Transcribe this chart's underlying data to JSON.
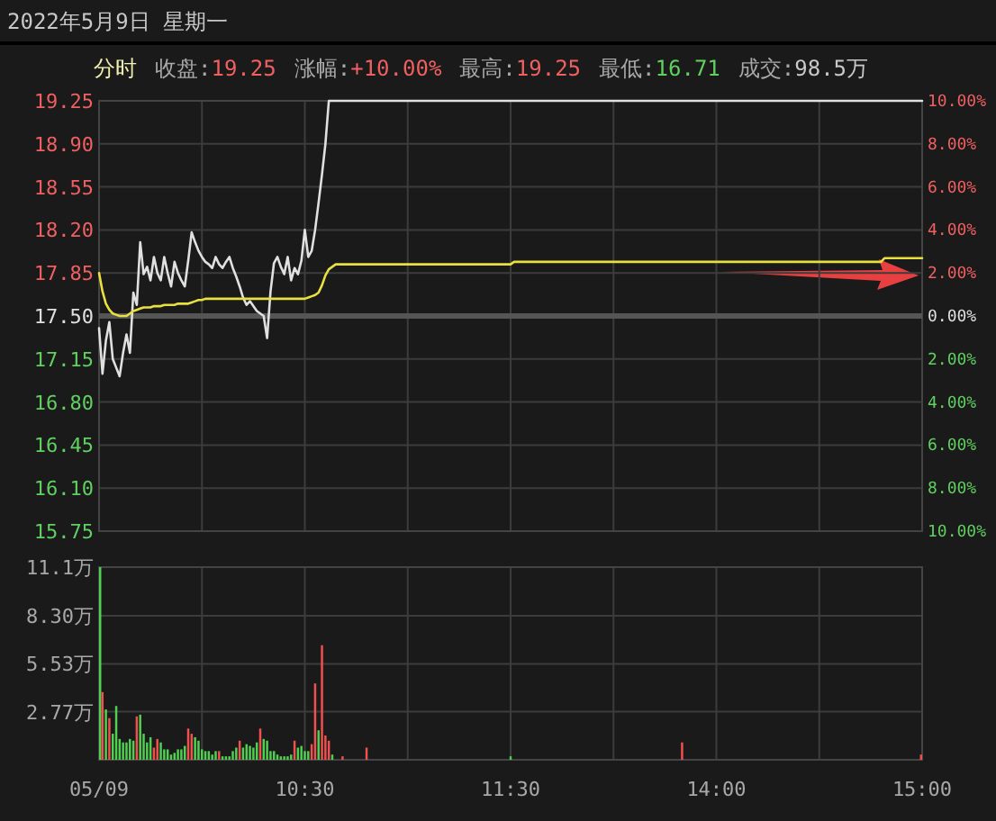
{
  "chart_data": [
    {
      "type": "line",
      "title": "2022年5月9日 星期一",
      "annotations": [
        "分时",
        "收盘:19.25",
        "涨幅:+10.00%",
        "最高:19.25",
        "最低:16.71",
        "成交:98.5万"
      ],
      "categories": [
        null,
        null,
        null,
        null,
        null,
        null,
        null,
        null,
        null,
        null,
        null,
        null,
        null,
        null,
        null,
        null,
        null,
        null,
        null,
        null,
        null,
        null,
        null,
        null,
        null,
        null,
        null,
        null,
        null,
        null,
        null,
        null,
        null,
        null,
        null,
        null,
        null,
        null,
        null,
        null,
        null,
        null,
        null,
        null,
        null,
        null,
        null,
        null,
        null,
        null,
        null,
        null,
        null,
        null,
        null,
        null,
        null,
        null,
        null,
        null,
        null,
        null,
        null,
        null,
        null,
        null,
        null,
        null,
        null,
        null,
        null,
        null,
        null,
        null,
        null,
        null,
        null,
        null,
        null,
        null,
        null,
        null,
        null,
        null,
        null,
        null,
        null,
        null,
        null,
        null,
        null,
        null,
        null,
        null,
        null,
        null,
        null,
        null,
        null,
        null,
        null,
        null,
        null,
        null,
        null,
        null,
        null,
        null,
        null,
        null,
        null,
        null,
        null,
        null,
        null,
        null,
        null,
        null,
        null,
        null,
        null,
        null,
        null,
        null,
        null,
        null,
        null,
        null,
        null,
        null,
        null,
        null,
        null,
        null,
        null,
        null,
        null,
        null,
        null,
        null,
        null,
        null,
        null,
        null,
        null,
        null,
        null,
        null,
        null,
        null,
        null,
        null,
        null,
        null,
        null,
        null,
        null,
        null,
        null,
        null,
        null,
        null,
        null,
        null,
        null,
        null,
        null,
        null,
        null,
        null,
        null,
        null,
        null,
        null,
        null,
        null,
        null,
        null,
        null,
        null,
        null,
        null,
        null,
        null,
        null,
        null,
        null,
        null,
        null,
        null,
        null,
        null,
        null,
        null,
        null,
        null,
        null,
        null,
        null,
        null,
        null,
        null,
        null,
        null,
        null,
        null,
        null,
        null,
        null,
        null,
        null,
        null,
        null,
        null,
        null,
        null,
        null,
        null,
        null,
        null,
        null,
        null,
        null,
        null,
        null,
        null,
        null,
        null,
        null,
        null,
        null,
        null,
        null,
        null,
        null,
        null,
        null,
        null,
        null,
        null,
        null
      ],
      "ylim": [
        15.75,
        19.25
      ],
      "yticks": [
        {
          "value": 19.25,
          "label": "19.25"
        },
        {
          "value": 18.9,
          "label": "18.90"
        },
        {
          "value": 18.55,
          "label": "18.55"
        },
        {
          "value": 18.2,
          "label": "18.20"
        },
        {
          "value": 17.85,
          "label": "17.85"
        },
        {
          "value": 17.5,
          "label": "17.50"
        },
        {
          "value": 17.15,
          "label": "17.15"
        },
        {
          "value": 16.8,
          "label": "16.80"
        },
        {
          "value": 16.45,
          "label": "16.45"
        },
        {
          "value": 16.1,
          "label": "16.10"
        },
        {
          "value": 15.75,
          "label": "15.75"
        }
      ],
      "y2lim": [
        -10,
        10
      ],
      "y2ticks": [
        {
          "value": 10,
          "label": "10.00%"
        },
        {
          "value": 8,
          "label": "8.00%"
        },
        {
          "value": 6,
          "label": "6.00%"
        },
        {
          "value": 4,
          "label": "4.00%"
        },
        {
          "value": 2,
          "label": "2.00%"
        },
        {
          "value": 0,
          "label": "0.00%"
        },
        {
          "value": -2,
          "label": "2.00%"
        },
        {
          "value": -4,
          "label": "4.00%"
        },
        {
          "value": -6,
          "label": "6.00%"
        },
        {
          "value": -8,
          "label": "8.00%"
        },
        {
          "value": -10,
          "label": "10.00%"
        }
      ],
      "tick_labels": "y",
      "grid": true,
      "ref_lines": [
        {
          "axis": "y",
          "value": 17.5,
          "color": "#555555"
        }
      ],
      "series": [
        {
          "color": "#e0e0e0",
          "values": [
            17.4,
            17.03,
            17.3,
            17.45,
            17.15,
            17.08,
            17.01,
            17.2,
            17.35,
            17.2,
            17.69,
            17.59,
            18.1,
            17.84,
            17.9,
            17.79,
            17.98,
            17.85,
            17.79,
            17.98,
            17.85,
            17.74,
            17.94,
            17.85,
            17.79,
            17.74,
            17.95,
            18.18,
            18.1,
            18.03,
            17.98,
            17.94,
            17.92,
            17.89,
            17.98,
            17.92,
            17.89,
            17.94,
            17.98,
            17.89,
            17.82,
            17.74,
            17.65,
            17.59,
            17.62,
            17.58,
            17.54,
            17.52,
            17.5,
            17.32,
            17.7,
            17.93,
            17.98,
            17.9,
            17.84,
            17.98,
            17.79,
            17.89,
            17.84,
            17.95,
            18.2,
            17.98,
            18.03,
            18.2,
            18.42,
            18.65,
            18.9,
            19.25,
            19.25,
            19.25,
            19.25,
            19.25,
            19.25,
            19.25,
            19.25,
            19.25,
            19.25,
            19.25,
            19.25,
            19.25,
            19.25,
            19.25,
            19.25,
            19.25,
            19.25,
            19.25,
            19.25,
            19.25,
            19.25,
            19.25,
            19.25,
            19.25,
            19.25,
            19.25,
            19.25,
            19.25,
            19.25,
            19.25,
            19.25,
            19.25,
            19.25,
            19.25,
            19.25,
            19.25,
            19.25,
            19.25,
            19.25,
            19.25,
            19.25,
            19.25,
            19.25,
            19.25,
            19.25,
            19.25,
            19.25,
            19.25,
            19.25,
            19.25,
            19.25,
            19.25,
            19.25,
            19.25,
            19.25,
            19.25,
            19.25,
            19.25,
            19.25,
            19.25,
            19.25,
            19.25,
            19.25,
            19.25,
            19.25,
            19.25,
            19.25,
            19.25,
            19.25,
            19.25,
            19.25,
            19.25,
            19.25,
            19.25,
            19.25,
            19.25,
            19.25,
            19.25,
            19.25,
            19.25,
            19.25,
            19.25,
            19.25,
            19.25,
            19.25,
            19.25,
            19.25,
            19.25,
            19.25,
            19.25,
            19.25,
            19.25,
            19.25,
            19.25,
            19.25,
            19.25,
            19.25,
            19.25,
            19.25,
            19.25,
            19.25,
            19.25,
            19.25,
            19.25,
            19.25,
            19.25,
            19.25,
            19.25,
            19.25,
            19.25,
            19.25,
            19.25,
            19.25,
            19.25,
            19.25,
            19.25,
            19.25,
            19.25,
            19.25,
            19.25,
            19.25,
            19.25,
            19.25,
            19.25,
            19.25,
            19.25,
            19.25,
            19.25,
            19.25,
            19.25,
            19.25,
            19.25,
            19.25,
            19.25,
            19.25,
            19.25,
            19.25,
            19.25,
            19.25,
            19.25,
            19.25,
            19.25,
            19.25,
            19.25,
            19.25,
            19.25,
            19.25,
            19.25,
            19.25,
            19.25,
            19.25,
            19.25,
            19.25,
            19.25,
            19.25,
            19.25,
            19.25,
            19.25,
            19.25,
            19.25,
            19.25,
            19.25,
            19.25,
            19.25,
            19.25,
            19.25,
            19.25,
            19.25,
            19.25,
            19.25,
            19.25,
            19.25,
            19.25
          ]
        },
        {
          "color": "#e8e040",
          "values": [
            17.85,
            17.7,
            17.6,
            17.55,
            17.52,
            17.51,
            17.5,
            17.5,
            17.5,
            17.52,
            17.54,
            17.55,
            17.56,
            17.57,
            17.57,
            17.57,
            17.58,
            17.58,
            17.58,
            17.59,
            17.59,
            17.59,
            17.59,
            17.6,
            17.6,
            17.6,
            17.6,
            17.61,
            17.62,
            17.63,
            17.63,
            17.64,
            17.64,
            17.64,
            17.64,
            17.64,
            17.64,
            17.64,
            17.64,
            17.64,
            17.64,
            17.64,
            17.64,
            17.64,
            17.64,
            17.64,
            17.64,
            17.64,
            17.64,
            17.64,
            17.64,
            17.64,
            17.64,
            17.64,
            17.64,
            17.64,
            17.64,
            17.64,
            17.64,
            17.64,
            17.64,
            17.65,
            17.66,
            17.67,
            17.69,
            17.75,
            17.83,
            17.88,
            17.9,
            17.92,
            17.92,
            17.92,
            17.92,
            17.92,
            17.92,
            17.92,
            17.92,
            17.92,
            17.92,
            17.92,
            17.92,
            17.92,
            17.92,
            17.92,
            17.92,
            17.92,
            17.92,
            17.92,
            17.92,
            17.92,
            17.92,
            17.92,
            17.92,
            17.92,
            17.92,
            17.92,
            17.92,
            17.92,
            17.92,
            17.92,
            17.92,
            17.92,
            17.92,
            17.92,
            17.92,
            17.92,
            17.92,
            17.92,
            17.92,
            17.92,
            17.92,
            17.92,
            17.92,
            17.92,
            17.92,
            17.92,
            17.92,
            17.92,
            17.92,
            17.92,
            17.92,
            17.94,
            17.94,
            17.94,
            17.94,
            17.94,
            17.94,
            17.94,
            17.94,
            17.94,
            17.94,
            17.94,
            17.94,
            17.94,
            17.94,
            17.94,
            17.94,
            17.94,
            17.94,
            17.94,
            17.94,
            17.94,
            17.94,
            17.94,
            17.94,
            17.94,
            17.94,
            17.94,
            17.94,
            17.94,
            17.94,
            17.94,
            17.94,
            17.94,
            17.94,
            17.94,
            17.94,
            17.94,
            17.94,
            17.94,
            17.94,
            17.94,
            17.94,
            17.94,
            17.94,
            17.94,
            17.94,
            17.94,
            17.94,
            17.94,
            17.94,
            17.94,
            17.94,
            17.94,
            17.94,
            17.94,
            17.94,
            17.94,
            17.94,
            17.94,
            17.94,
            17.94,
            17.94,
            17.94,
            17.94,
            17.94,
            17.94,
            17.94,
            17.94,
            17.94,
            17.94,
            17.94,
            17.94,
            17.94,
            17.94,
            17.94,
            17.94,
            17.94,
            17.94,
            17.94,
            17.94,
            17.94,
            17.94,
            17.94,
            17.94,
            17.94,
            17.94,
            17.94,
            17.94,
            17.94,
            17.94,
            17.94,
            17.94,
            17.94,
            17.94,
            17.94,
            17.94,
            17.94,
            17.94,
            17.94,
            17.94,
            17.94,
            17.94,
            17.94,
            17.94,
            17.94,
            17.94,
            17.94,
            17.94,
            17.97,
            17.97,
            17.97,
            17.97,
            17.97,
            17.97,
            17.97,
            17.97,
            17.97,
            17.97,
            17.97,
            17.97
          ]
        }
      ]
    },
    {
      "type": "bar",
      "categories": [
        "05/09",
        null,
        null,
        null,
        null,
        null,
        null,
        null,
        null,
        null,
        null,
        null,
        null,
        null,
        null,
        null,
        null,
        null,
        null,
        null,
        null,
        null,
        null,
        null,
        null,
        null,
        null,
        null,
        null,
        null,
        null,
        null,
        null,
        null,
        null,
        null,
        null,
        null,
        null,
        null,
        null,
        null,
        null,
        null,
        null,
        null,
        null,
        null,
        null,
        null,
        null,
        null,
        null,
        null,
        null,
        null,
        null,
        null,
        null,
        null,
        "10:30",
        null,
        null,
        null,
        null,
        null,
        null,
        null,
        null,
        null,
        null,
        null,
        null,
        null,
        null,
        null,
        null,
        null,
        null,
        null,
        null,
        null,
        null,
        null,
        null,
        null,
        null,
        null,
        null,
        null,
        null,
        null,
        null,
        null,
        null,
        null,
        null,
        null,
        null,
        null,
        null,
        null,
        null,
        null,
        null,
        null,
        null,
        null,
        null,
        null,
        null,
        null,
        null,
        null,
        null,
        null,
        null,
        null,
        null,
        null,
        "11:30",
        null,
        null,
        null,
        null,
        null,
        null,
        null,
        null,
        null,
        null,
        null,
        null,
        null,
        null,
        null,
        null,
        null,
        null,
        null,
        null,
        null,
        null,
        null,
        null,
        null,
        null,
        null,
        null,
        null,
        null,
        null,
        null,
        null,
        null,
        null,
        null,
        null,
        null,
        null,
        null,
        null,
        null,
        null,
        null,
        null,
        null,
        null,
        null,
        null,
        null,
        null,
        null,
        null,
        null,
        null,
        null,
        null,
        null,
        null,
        "14:00",
        null,
        null,
        null,
        null,
        null,
        null,
        null,
        null,
        null,
        null,
        null,
        null,
        null,
        null,
        null,
        null,
        null,
        null,
        null,
        null,
        null,
        null,
        null,
        null,
        null,
        null,
        null,
        null,
        null,
        null,
        null,
        null,
        null,
        null,
        null,
        null,
        null,
        null,
        null,
        null,
        null,
        null,
        null,
        null,
        null,
        null,
        null,
        null,
        null,
        null,
        null,
        null,
        null,
        null,
        null,
        null,
        null,
        null,
        null,
        "15:00"
      ],
      "ylim": [
        0,
        11.1
      ],
      "yticks": [
        {
          "value": 0,
          "label": null
        },
        {
          "value": 2.77,
          "label": "2.77万"
        },
        {
          "value": 5.53,
          "label": "5.53万"
        },
        {
          "value": 8.3,
          "label": "8.30万"
        },
        {
          "value": 11.1,
          "label": "11.1万"
        }
      ],
      "grid": true,
      "series": [
        {
          "color": "#50d050",
          "values": [
            11.1,
            null,
            2.9,
            null,
            1.5,
            3.1,
            1.2,
            1.0,
            1.0,
            1.2,
            1.1,
            null,
            2.6,
            1.5,
            1.0,
            1.3,
            null,
            null,
            1.0,
            0.6,
            0.6,
            0.3,
            0.4,
            0.6,
            0.6,
            0.8,
            null,
            null,
            1.3,
            1.1,
            0.6,
            0.5,
            0.5,
            0.3,
            0.5,
            null,
            0.2,
            0.2,
            0.2,
            0.5,
            0.7,
            null,
            0.7,
            0.9,
            0.8,
            0.7,
            1.0,
            null,
            1.2,
            1.1,
            0.5,
            0.5,
            0.3,
            0.2,
            0.2,
            0.2,
            0.3,
            null,
            0.7,
            0.8,
            0.5,
            0.5,
            null,
            null,
            1.7,
            null,
            null,
            null,
            0.3,
            null,
            null,
            null,
            null,
            null,
            null,
            null,
            null,
            null,
            null,
            null,
            null,
            null,
            null,
            null,
            null,
            null,
            null,
            null,
            null,
            null,
            null,
            null,
            null,
            null,
            null,
            null,
            null,
            null,
            null,
            null,
            null,
            null,
            null,
            null,
            null,
            null,
            null,
            null,
            null,
            null,
            null,
            null,
            null,
            null,
            null,
            null,
            null,
            null,
            null,
            null,
            0.2,
            null,
            null,
            null,
            null,
            null,
            null,
            null,
            null,
            null,
            null,
            null,
            null,
            null,
            null,
            null,
            null,
            null,
            null,
            null,
            null,
            null,
            null,
            null,
            null,
            null,
            null,
            null,
            null,
            null,
            null,
            null,
            null,
            null,
            null,
            null,
            null,
            null,
            null,
            null,
            null,
            null,
            null,
            null,
            null,
            null,
            null,
            null,
            null,
            null,
            null,
            null,
            null,
            null,
            null,
            null,
            null,
            null,
            null,
            null,
            null,
            null,
            null,
            null,
            null,
            null,
            null,
            null,
            null,
            null,
            null,
            null,
            null,
            null,
            null,
            null,
            null,
            null,
            null,
            null,
            null,
            null,
            null,
            null,
            null,
            null,
            null,
            null,
            null,
            null,
            null,
            null,
            null,
            null,
            null,
            null,
            null,
            null,
            null,
            null,
            null,
            null,
            null,
            null,
            null,
            null,
            null,
            null,
            null,
            null,
            null,
            null,
            null,
            null,
            null,
            null,
            null,
            null,
            null,
            null,
            null
          ]
        },
        {
          "color": "#f05050",
          "values": [
            null,
            3.9,
            null,
            2.4,
            null,
            null,
            null,
            null,
            null,
            null,
            null,
            2.5,
            null,
            null,
            null,
            null,
            0.7,
            1.2,
            null,
            null,
            null,
            null,
            null,
            null,
            null,
            null,
            1.8,
            1.5,
            null,
            null,
            null,
            null,
            null,
            null,
            null,
            0.5,
            null,
            null,
            null,
            null,
            null,
            1.1,
            null,
            null,
            null,
            null,
            null,
            1.8,
            null,
            null,
            null,
            null,
            null,
            null,
            null,
            null,
            null,
            1.1,
            null,
            null,
            null,
            null,
            0.9,
            4.4,
            null,
            6.6,
            1.4,
            1.1,
            null,
            null,
            null,
            0.2,
            null,
            null,
            null,
            null,
            null,
            null,
            0.7,
            null,
            null,
            null,
            null,
            null,
            null,
            null,
            null,
            null,
            null,
            null,
            null,
            null,
            null,
            null,
            null,
            null,
            null,
            null,
            null,
            null,
            null,
            null,
            null,
            null,
            null,
            null,
            null,
            null,
            null,
            null,
            null,
            null,
            null,
            null,
            null,
            null,
            null,
            null,
            null,
            null,
            null,
            null,
            null,
            null,
            null,
            null,
            null,
            null,
            null,
            null,
            null,
            null,
            null,
            null,
            null,
            null,
            null,
            null,
            null,
            null,
            null,
            null,
            null,
            null,
            null,
            null,
            null,
            null,
            null,
            null,
            null,
            null,
            null,
            null,
            null,
            null,
            null,
            null,
            null,
            null,
            null,
            null,
            null,
            null,
            null,
            null,
            null,
            null,
            null,
            null,
            1.0,
            null,
            null,
            null,
            null,
            null,
            null,
            null,
            null,
            null,
            null,
            null,
            null,
            null,
            null,
            null,
            null,
            null,
            null,
            null,
            null,
            null,
            null,
            null,
            null,
            null,
            null,
            null,
            null,
            null,
            null,
            null,
            null,
            null,
            null,
            null,
            null,
            null,
            null,
            null,
            null,
            null,
            null,
            null,
            null,
            null,
            null,
            null,
            null,
            null,
            null,
            null,
            null,
            null,
            null,
            null,
            null,
            null,
            null,
            null,
            null,
            null,
            null,
            null,
            null,
            null,
            null,
            null,
            null,
            null,
            0.3
          ]
        }
      ]
    }
  ]
}
